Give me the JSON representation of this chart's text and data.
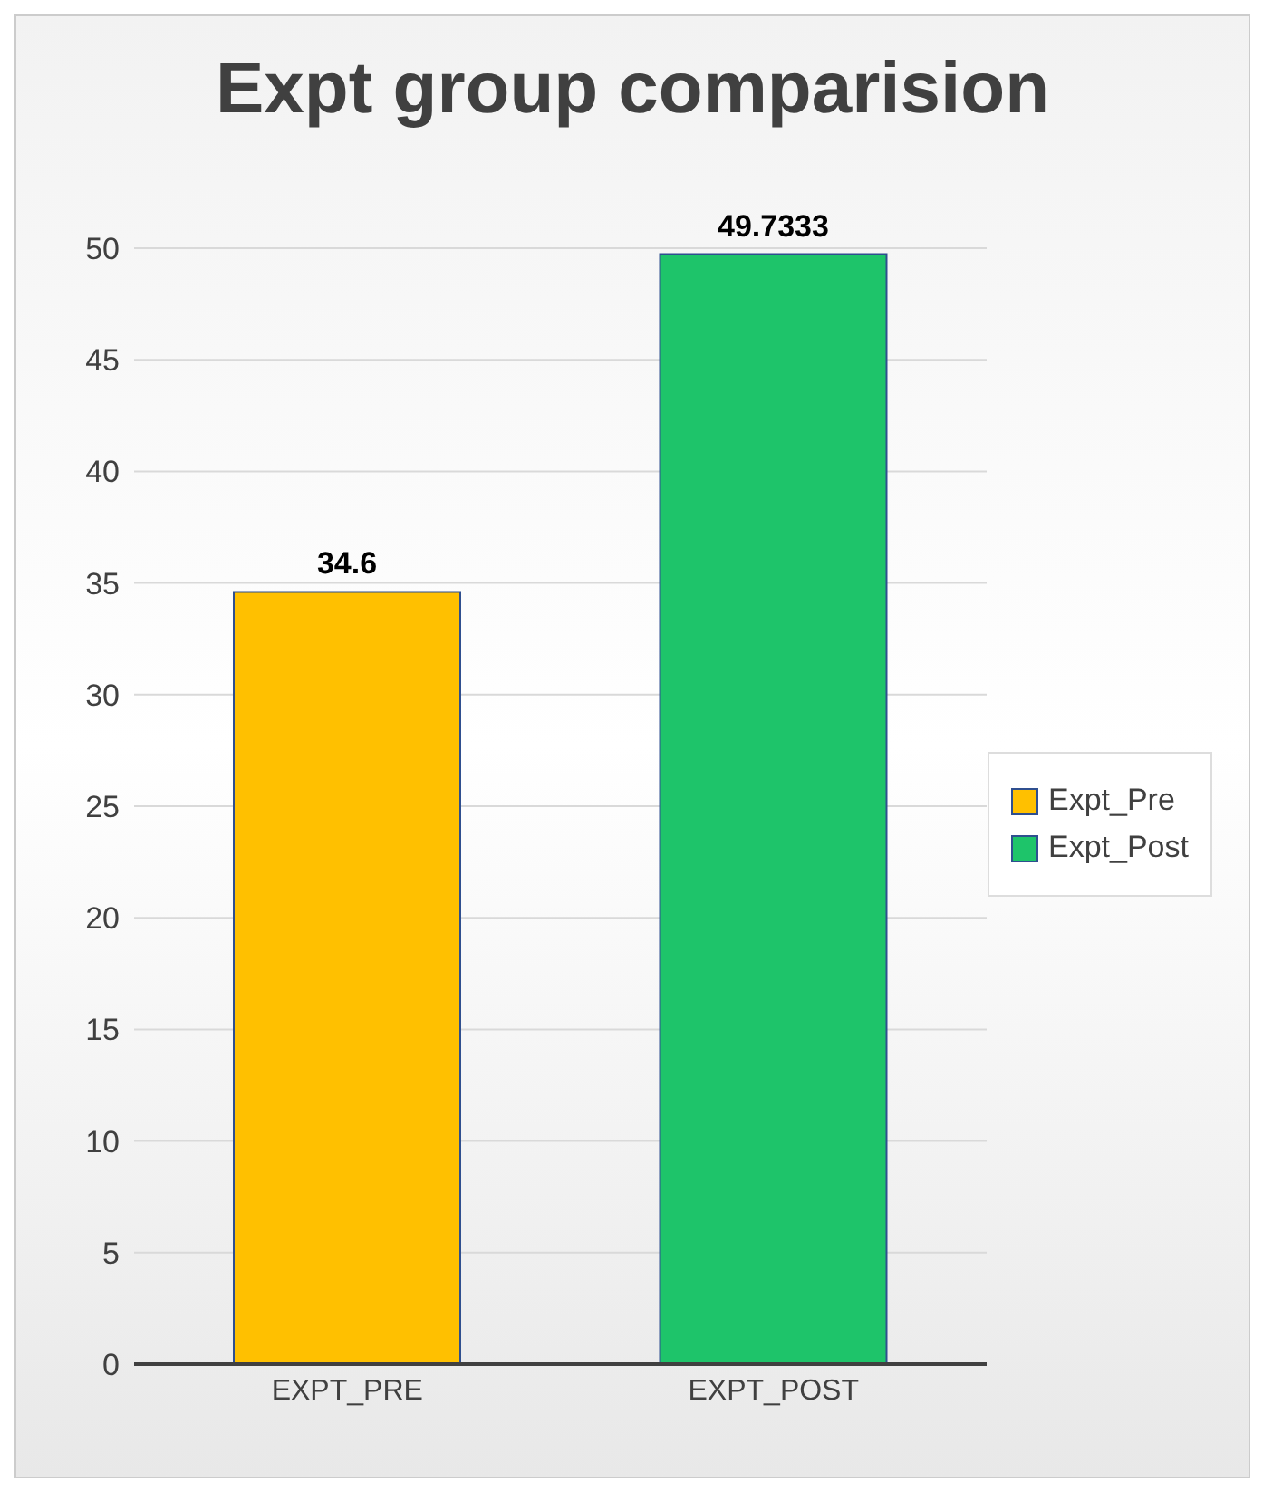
{
  "chart_data": {
    "type": "bar",
    "title": "Expt group comparision",
    "categories": [
      "EXPT_PRE",
      "EXPT_POST"
    ],
    "series": [
      {
        "name": "Expt_Pre",
        "color": "#ffc000",
        "values": [
          34.6,
          null
        ]
      },
      {
        "name": "Expt_Post",
        "color": "#1ec46a",
        "values": [
          null,
          49.7333
        ]
      }
    ],
    "stacked": true,
    "ylim": [
      0,
      50
    ],
    "yticks": [
      0,
      5,
      10,
      15,
      20,
      25,
      30,
      35,
      40,
      45,
      50
    ],
    "grid": "y",
    "legend": "right",
    "data_labels": true
  }
}
